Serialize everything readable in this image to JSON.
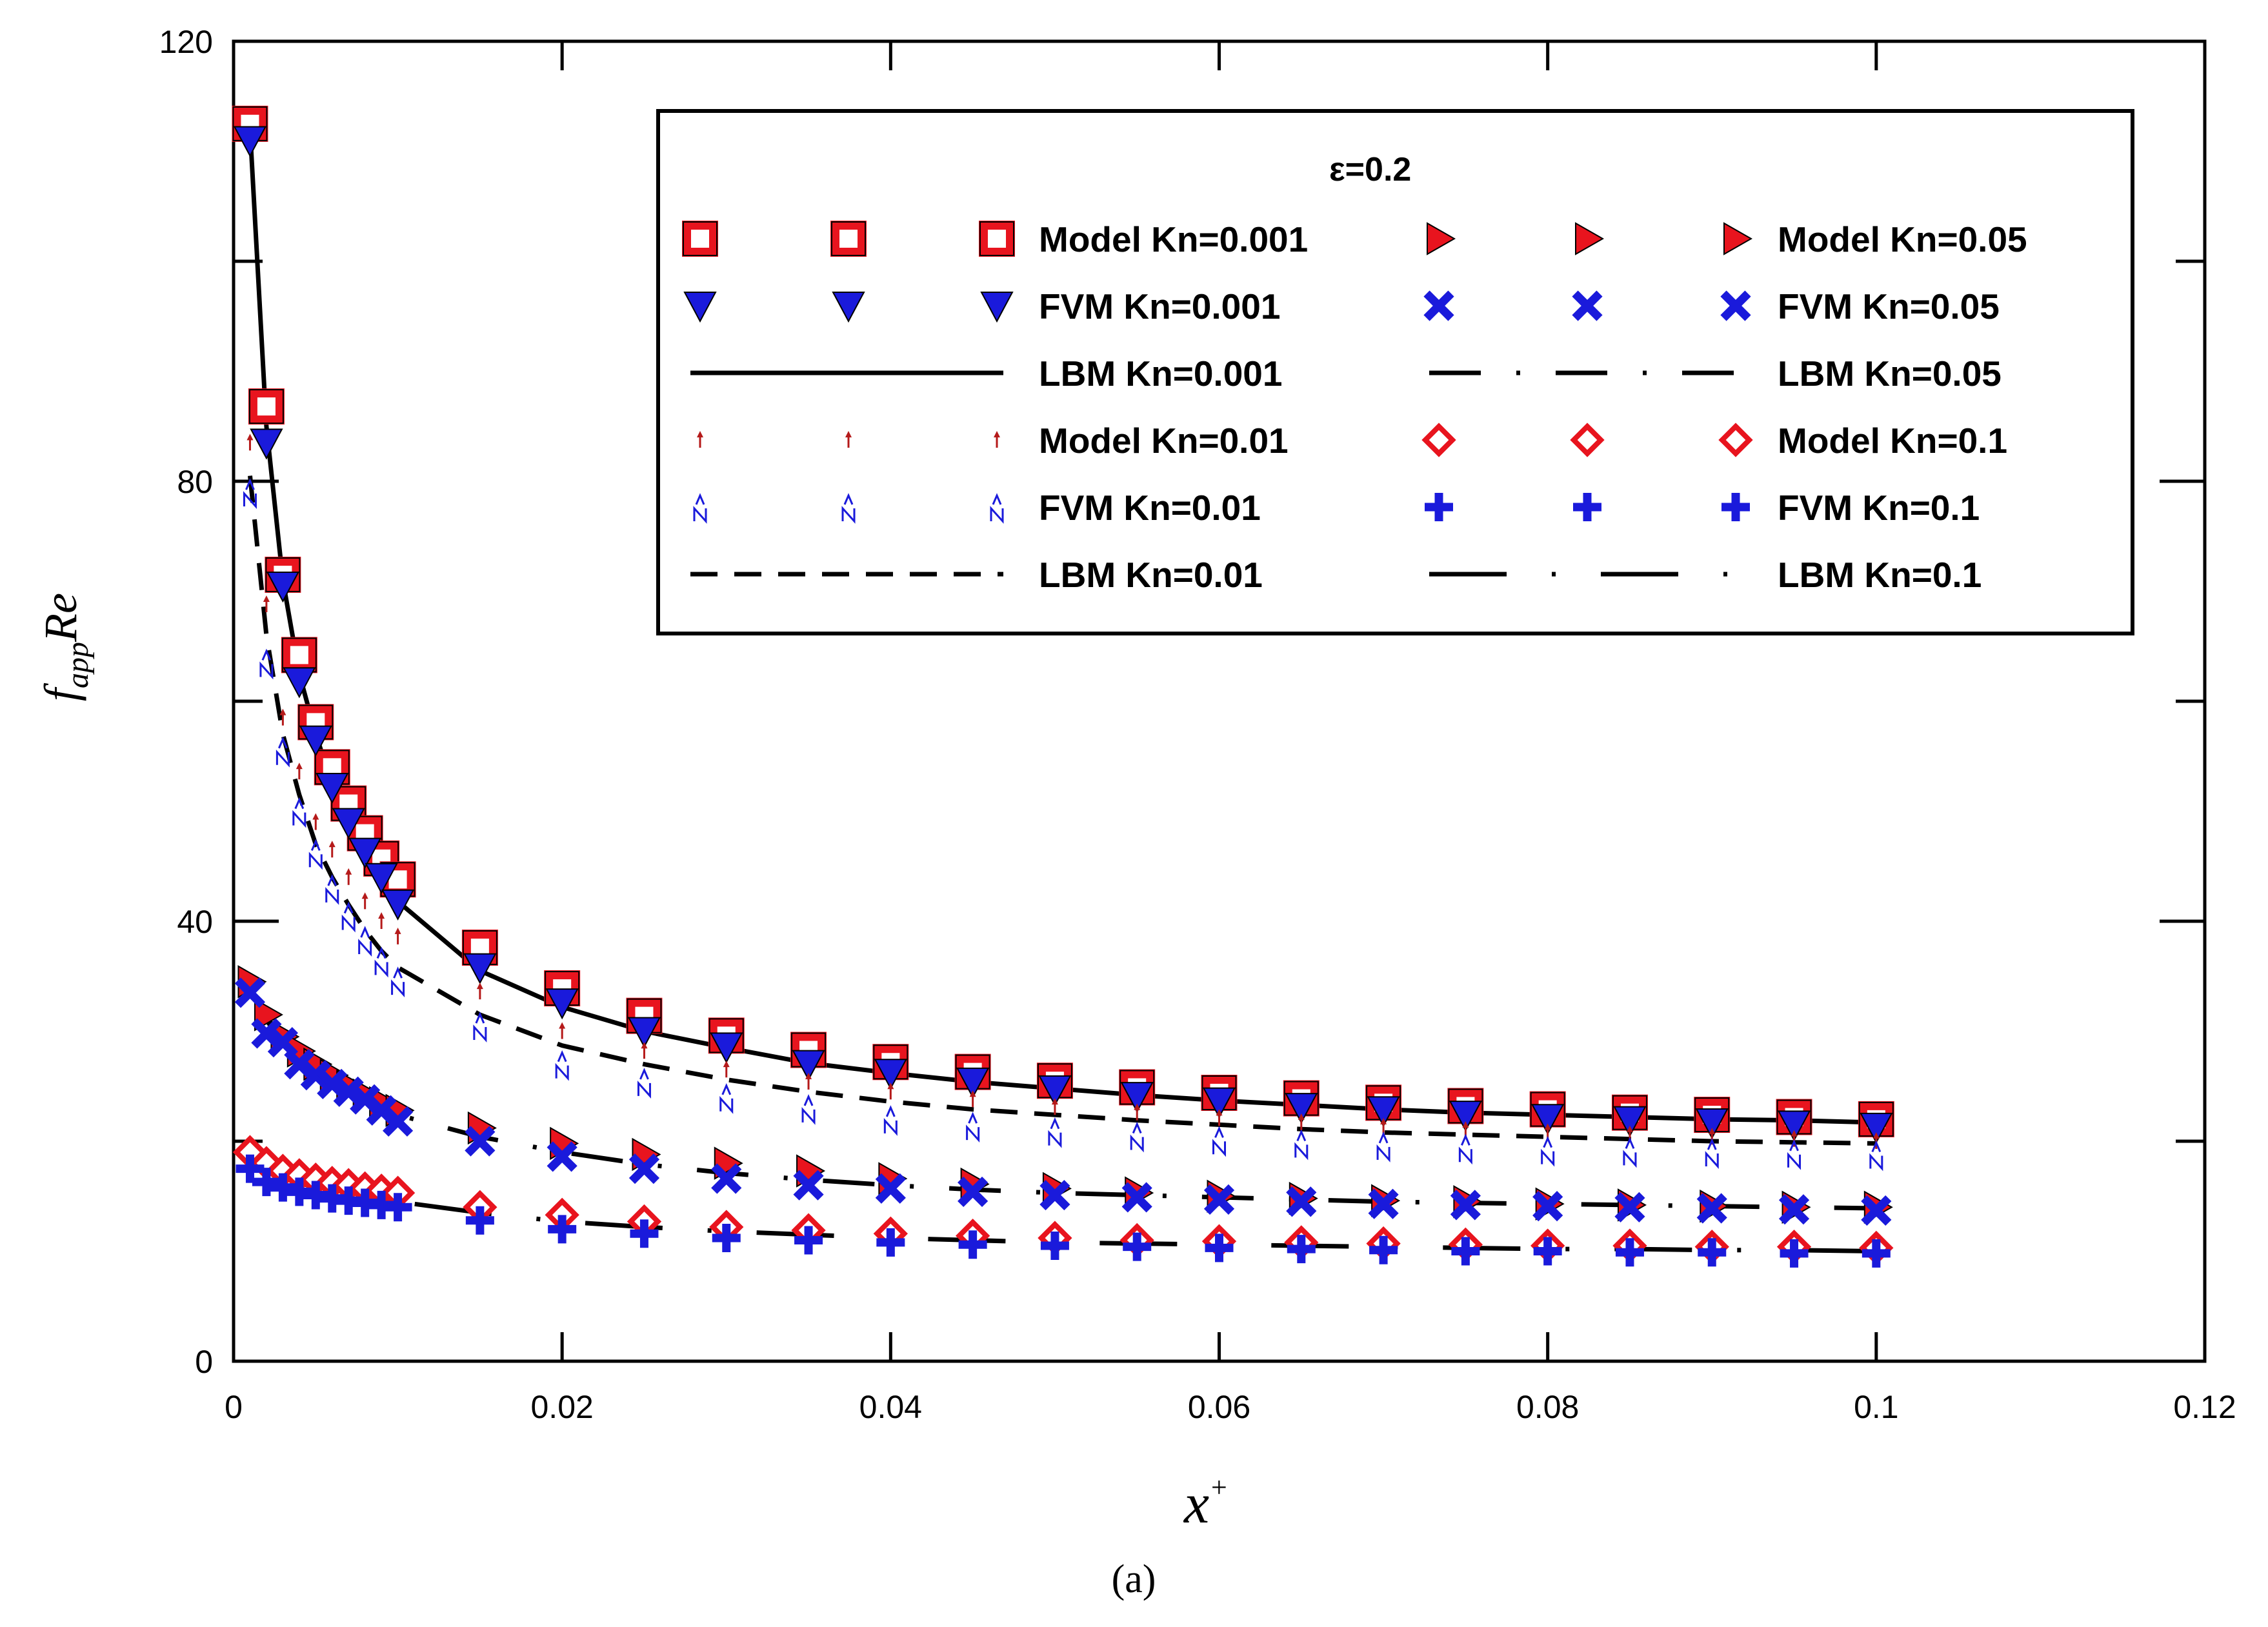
{
  "caption": "(a)",
  "chart_data": {
    "type": "scatter",
    "title": "",
    "xlabel": "x+",
    "xlabel_main": "x",
    "xlabel_sup": "+",
    "ylabel": "f_app Re",
    "ylabel_f": "f",
    "ylabel_sub": "app",
    "ylabel_re": "Re",
    "xlim": [
      0,
      0.12
    ],
    "ylim": [
      0,
      120
    ],
    "xticks": [
      0,
      0.02,
      0.04,
      0.06,
      0.08,
      0.1,
      0.12
    ],
    "xtick_labels": [
      "0",
      "0.02",
      "0.04",
      "0.06",
      "0.08",
      "0.1",
      "0.12"
    ],
    "yticks": [
      0,
      40,
      80,
      120
    ],
    "ytick_labels": [
      "0",
      "40",
      "80",
      "120"
    ],
    "grid": false,
    "legend_title": "ε=0.2",
    "legend_position": "top-right",
    "x": [
      0.001,
      0.002,
      0.003,
      0.004,
      0.005,
      0.006,
      0.007,
      0.008,
      0.009,
      0.01,
      0.015,
      0.02,
      0.025,
      0.03,
      0.035,
      0.04,
      0.045,
      0.05,
      0.055,
      0.06,
      0.065,
      0.07,
      0.075,
      0.08,
      0.085,
      0.09,
      0.095,
      0.1
    ],
    "series": [
      {
        "name": "Model Kn=0.001",
        "marker": "square",
        "color": "#e8141e",
        "values": [
          112.5,
          86.8,
          71.5,
          64.2,
          58.1,
          54.0,
          50.7,
          48.0,
          45.7,
          43.8,
          37.6,
          33.9,
          31.4,
          29.6,
          28.3,
          27.2,
          26.3,
          25.5,
          24.9,
          24.4,
          23.9,
          23.5,
          23.2,
          22.9,
          22.6,
          22.4,
          22.2,
          22.0
        ]
      },
      {
        "name": "FVM Kn=0.001",
        "marker": "tri-down",
        "color": "#1a1adb",
        "values": [
          111.0,
          83.5,
          70.5,
          61.8,
          56.5,
          52.2,
          49.0,
          46.3,
          44.0,
          41.6,
          35.8,
          32.6,
          30.0,
          28.6,
          27.0,
          26.2,
          25.4,
          24.7,
          24.1,
          23.6,
          23.1,
          22.8,
          22.4,
          22.1,
          21.9,
          21.7,
          21.5,
          21.3
        ]
      },
      {
        "name": "LBM Kn=0.001",
        "line": "solid",
        "color": "#000000",
        "values": [
          112.0,
          85.0,
          71.0,
          62.5,
          57.0,
          52.5,
          49.0,
          46.3,
          43.8,
          41.8,
          35.5,
          32.2,
          30.0,
          28.5,
          27.1,
          26.2,
          25.4,
          24.8,
          24.2,
          23.7,
          23.3,
          22.9,
          22.6,
          22.4,
          22.2,
          22.0,
          21.9,
          21.7
        ]
      },
      {
        "name": "Model Kn=0.01",
        "marker": "small-arrow",
        "color": "#b51a1a",
        "values": [
          83.5,
          68.8,
          58.5,
          53.6,
          49.0,
          46.5,
          44.0,
          41.8,
          40.0,
          38.6,
          33.6,
          30.0,
          28.2,
          26.5,
          25.4,
          24.5,
          23.8,
          23.1,
          22.6,
          22.1,
          21.7,
          21.3,
          21.0,
          20.8,
          20.6,
          20.4,
          20.2,
          20.0
        ]
      },
      {
        "name": "FVM Kn=0.01",
        "marker": "n-arrow",
        "color": "#1a1adb",
        "values": [
          79.0,
          63.5,
          55.5,
          50.0,
          46.2,
          43.0,
          40.5,
          38.3,
          36.4,
          34.6,
          30.5,
          27.0,
          25.4,
          24.0,
          23.0,
          22.0,
          21.4,
          20.9,
          20.5,
          20.1,
          19.8,
          19.6,
          19.4,
          19.2,
          19.1,
          19.0,
          18.9,
          18.8
        ]
      },
      {
        "name": "LBM Kn=0.01",
        "line": "dashed",
        "color": "#000000",
        "values": [
          80.5,
          66.0,
          57.0,
          51.5,
          47.0,
          44.0,
          41.5,
          39.2,
          37.3,
          35.8,
          31.5,
          28.7,
          27.0,
          25.6,
          24.5,
          23.6,
          22.9,
          22.4,
          21.9,
          21.5,
          21.1,
          20.8,
          20.6,
          20.4,
          20.2,
          20.0,
          19.9,
          19.8
        ]
      },
      {
        "name": "Model Kn=0.05",
        "marker": "tri-right",
        "color": "#e8141e",
        "values": [
          34.5,
          31.5,
          29.5,
          28.2,
          27.0,
          26.0,
          25.0,
          24.2,
          23.5,
          22.8,
          21.2,
          19.8,
          18.8,
          18.0,
          17.3,
          16.6,
          16.1,
          15.7,
          15.3,
          15.0,
          14.8,
          14.6,
          14.5,
          14.3,
          14.2,
          14.1,
          14.0,
          14.0
        ]
      },
      {
        "name": "FVM Kn=0.05",
        "marker": "cross",
        "color": "#1a1adb",
        "values": [
          33.5,
          29.8,
          29.0,
          27.0,
          26.0,
          25.2,
          24.5,
          23.8,
          22.8,
          21.8,
          20.0,
          18.6,
          17.5,
          16.6,
          16.0,
          15.7,
          15.4,
          15.1,
          14.9,
          14.7,
          14.5,
          14.3,
          14.2,
          14.1,
          14.0,
          13.9,
          13.8,
          13.7
        ]
      },
      {
        "name": "LBM Kn=0.05",
        "line": "long-dash-dot",
        "color": "#000000",
        "values": [
          34.0,
          31.0,
          29.0,
          27.6,
          26.4,
          25.4,
          24.6,
          23.8,
          23.1,
          22.4,
          20.4,
          19.0,
          17.9,
          17.1,
          16.5,
          16.0,
          15.6,
          15.3,
          15.1,
          14.9,
          14.7,
          14.5,
          14.4,
          14.3,
          14.2,
          14.1,
          14.0,
          13.9
        ]
      },
      {
        "name": "Model Kn=0.1",
        "marker": "diamond",
        "color": "#e8141e",
        "values": [
          19.0,
          18.0,
          17.3,
          16.9,
          16.5,
          16.2,
          16.0,
          15.7,
          15.5,
          15.3,
          14.0,
          13.3,
          12.7,
          12.2,
          11.9,
          11.6,
          11.4,
          11.2,
          11.0,
          10.9,
          10.8,
          10.7,
          10.6,
          10.5,
          10.5,
          10.4,
          10.4,
          10.3
        ]
      },
      {
        "name": "FVM Kn=0.1",
        "marker": "plus",
        "color": "#1a1adb",
        "values": [
          17.5,
          16.3,
          15.8,
          15.4,
          15.1,
          14.8,
          14.6,
          14.4,
          14.2,
          14.0,
          12.8,
          12.0,
          11.6,
          11.2,
          11.0,
          10.8,
          10.6,
          10.5,
          10.4,
          10.3,
          10.2,
          10.1,
          10.0,
          10.0,
          9.9,
          9.9,
          9.8,
          9.8
        ]
      },
      {
        "name": "LBM Kn=0.1",
        "line": "long-dash-dot-sparse",
        "color": "#000000",
        "values": [
          18.2,
          17.3,
          16.7,
          16.2,
          15.8,
          15.5,
          15.2,
          14.9,
          14.7,
          14.5,
          13.5,
          12.7,
          12.2,
          11.8,
          11.5,
          11.2,
          11.0,
          10.8,
          10.7,
          10.6,
          10.5,
          10.4,
          10.3,
          10.2,
          10.2,
          10.1,
          10.1,
          10.0
        ]
      }
    ]
  }
}
